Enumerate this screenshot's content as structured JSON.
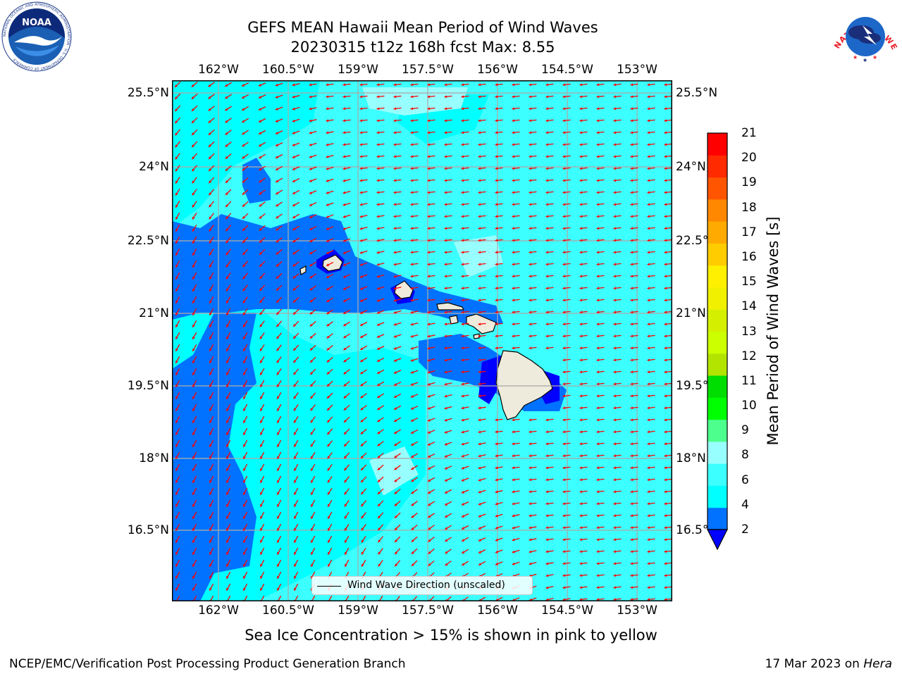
{
  "header": {
    "title_line1": "GEFS MEAN Hawaii Mean Period of Wind Waves",
    "title_line2": "20230315 t12z 168h fcst   Max: 8.55"
  },
  "logos": {
    "noaa": {
      "name": "noaa-logo",
      "text": "NOAA",
      "ring_text": "NATIONAL OCEANIC AND ATMOSPHERIC ADMINISTRATION · U.S. DEPARTMENT OF COMMERCE"
    },
    "nws": {
      "name": "nws-logo",
      "ring_text": "NATIONAL WEATHER SERVICE"
    }
  },
  "map": {
    "lon_labels": [
      "162°W",
      "160.5°W",
      "159°W",
      "157.5°W",
      "156°W",
      "154.5°W",
      "153°W"
    ],
    "lat_labels": [
      "25.5°N",
      "24°N",
      "22.5°N",
      "21°N",
      "19.5°N",
      "18°N",
      "16.5°N"
    ],
    "gridlines": "on",
    "vector_color": "#ff0000",
    "land_color": "#efebdc",
    "legend": {
      "label": "Wind Wave Direction (unscaled)",
      "placement": "bottom-center"
    }
  },
  "colorbar": {
    "label": "Mean Period of Wind Waves [s]",
    "ticks": [
      "2",
      "4",
      "6",
      "8",
      "9",
      "10",
      "11",
      "12",
      "13",
      "14",
      "15",
      "16",
      "17",
      "18",
      "19",
      "20",
      "21"
    ],
    "colors": [
      "#0072ff",
      "#00ffff",
      "#3cffff",
      "#98ffff",
      "#4dff8c",
      "#00ff00",
      "#00dd00",
      "#b2e400",
      "#ccff00",
      "#d4f000",
      "#f0f000",
      "#ffef00",
      "#ffcc00",
      "#ffaa00",
      "#ff8800",
      "#ff5500",
      "#ff2a00",
      "#ff0000"
    ],
    "under_color": "#0000ff",
    "extend": "min"
  },
  "notes": {
    "ice": "Sea Ice Concentration > 15% is shown in pink to yellow"
  },
  "footer": {
    "left": "NCEP/EMC/Verification Post Processing Product Generation Branch",
    "date": "17 Mar 2023 on",
    "machine": "Hera"
  }
}
